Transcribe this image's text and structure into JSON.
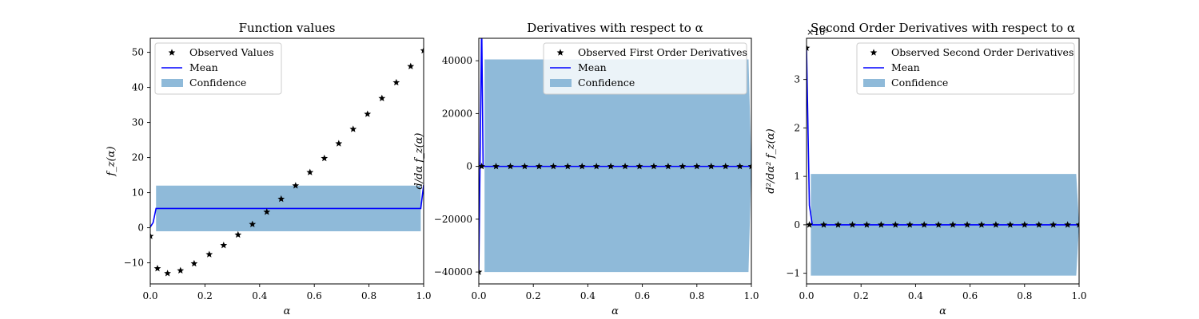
{
  "figure": {
    "background": "#ffffff",
    "colors": {
      "observed": "#000000",
      "mean": "#0000ff",
      "confidence": "#8fbad9"
    }
  },
  "chart_data": [
    {
      "type": "line",
      "title": "Function values",
      "xlabel": "α",
      "ylabel": "f_z(α)",
      "xlim": [
        0,
        1
      ],
      "ylim": [
        -16,
        54
      ],
      "xticks": [
        0,
        0.2,
        0.4,
        0.6,
        0.8,
        1
      ],
      "xtick_labels": [
        "0.0",
        "0.2",
        "0.4",
        "0.6",
        "0.8",
        "1.0"
      ],
      "yticks": [
        -10,
        0,
        10,
        20,
        30,
        40,
        50
      ],
      "ytick_labels": [
        "−10",
        "0",
        "10",
        "20",
        "30",
        "40",
        "50"
      ],
      "offset_text": "",
      "legend": {
        "location": "top-left",
        "entries": [
          "Observed Values",
          "Mean",
          "Confidence"
        ]
      },
      "observed": {
        "x": [
          0,
          0.0526,
          0.1053,
          0.1579,
          0.2105,
          0.2632,
          0.3158,
          0.3684,
          0.4211,
          0.4737,
          0.5263,
          0.5789,
          0.6316,
          0.6842,
          0.7368,
          0.7895,
          0.8421,
          0.8947,
          0.9474,
          1.0
        ],
        "y": [
          -2.4,
          -11.6,
          -13.0,
          -12.2,
          -10.2,
          -7.6,
          -5.0,
          -2.0,
          1.0,
          4.5,
          8.2,
          12.0,
          15.8,
          19.8,
          24.0,
          28.1,
          32.4,
          36.9,
          41.4,
          46.0
        ],
        "x_full": [
          0.0,
          0.0263,
          0.0632,
          0.1105,
          0.1605,
          0.2158,
          0.2684,
          0.3211,
          0.3737,
          0.4263,
          0.4789,
          0.5316,
          0.5842,
          0.6368,
          0.6895,
          0.7421,
          0.7947,
          0.8474,
          0.9,
          0.9526,
          1.0
        ],
        "y_full": [
          -2.4,
          -11.6,
          -13.0,
          -12.2,
          -10.2,
          -7.6,
          -5.0,
          -2.0,
          1.0,
          4.5,
          8.2,
          12.0,
          15.8,
          19.8,
          24.0,
          28.1,
          32.4,
          36.9,
          41.4,
          46.0,
          50.5
        ]
      },
      "mean": {
        "x": [
          0,
          0.0105,
          0.0211,
          0.9895,
          1.0
        ],
        "y": [
          0.2,
          1.5,
          5.5,
          5.5,
          12.2
        ]
      },
      "confidence": {
        "x": [
          0.0211,
          0.9895
        ],
        "lower": [
          -1.0,
          -1.0
        ],
        "upper": [
          12.0,
          12.0
        ]
      }
    },
    {
      "type": "line",
      "title": "Derivatives with respect to α",
      "xlabel": "α",
      "ylabel": "d/dα f_z(α)",
      "xlim": [
        0,
        1
      ],
      "ylim": [
        -44500,
        48500
      ],
      "xticks": [
        0,
        0.2,
        0.4,
        0.6,
        0.8,
        1
      ],
      "xtick_labels": [
        "0.0",
        "0.2",
        "0.4",
        "0.6",
        "0.8",
        "1.0"
      ],
      "yticks": [
        -40000,
        -20000,
        0,
        20000,
        40000
      ],
      "ytick_labels": [
        "−40000",
        "−20000",
        "0",
        "20000",
        "40000"
      ],
      "offset_text": "",
      "legend": {
        "location": "top-right",
        "entries": [
          "Observed First Order Derivatives",
          "Mean",
          "Confidence"
        ]
      },
      "observed": {
        "x": [
          0.0,
          0.0105,
          0.0632,
          0.1158,
          0.1684,
          0.2211,
          0.2737,
          0.3263,
          0.3789,
          0.4316,
          0.4842,
          0.5368,
          0.5895,
          0.6421,
          0.6947,
          0.7474,
          0.8,
          0.8526,
          0.9053,
          0.9579,
          1.0
        ],
        "y": [
          -40000,
          0,
          0,
          0,
          0,
          0,
          0,
          0,
          0,
          0,
          0,
          0,
          0,
          0,
          0,
          0,
          0,
          0,
          0,
          0,
          0
        ]
      },
      "mean": {
        "x": [
          0.0,
          0.0105,
          0.0158,
          0.0211,
          1.0
        ],
        "y": [
          -40000,
          54500,
          0,
          0,
          0
        ]
      },
      "confidence": {
        "x": [
          0.0211,
          0.9895,
          1.0
        ],
        "lower": [
          -40000,
          -40000,
          0
        ],
        "upper": [
          40500,
          40500,
          0
        ]
      }
    },
    {
      "type": "line",
      "title": "Second Order Derivatives with respect to α",
      "xlabel": "α",
      "ylabel": "d²/dα² f_z(α)",
      "xlim": [
        0,
        1
      ],
      "ylim": [
        -1.22,
        3.85
      ],
      "xticks": [
        0,
        0.2,
        0.4,
        0.6,
        0.8,
        1
      ],
      "xtick_labels": [
        "0.0",
        "0.2",
        "0.4",
        "0.6",
        "0.8",
        "1.0"
      ],
      "yticks": [
        -1,
        0,
        1,
        2,
        3
      ],
      "ytick_labels": [
        "−1",
        "0",
        "1",
        "2",
        "3"
      ],
      "offset_text": "×10⁹",
      "legend": {
        "location": "top-right",
        "entries": [
          "Observed Second Order Derivatives",
          "Mean",
          "Confidence"
        ]
      },
      "observed": {
        "x": [
          0.0,
          0.0105,
          0.0632,
          0.1158,
          0.1684,
          0.2211,
          0.2737,
          0.3263,
          0.3789,
          0.4316,
          0.4842,
          0.5368,
          0.5895,
          0.6421,
          0.6947,
          0.7474,
          0.8,
          0.8526,
          0.9053,
          0.9579,
          1.0
        ],
        "y": [
          3.65,
          0,
          0,
          0,
          0,
          0,
          0,
          0,
          0,
          0,
          0,
          0,
          0,
          0,
          0,
          0,
          0,
          0,
          0,
          0,
          0
        ]
      },
      "mean": {
        "x": [
          0.0,
          0.0105,
          0.0211,
          1.0
        ],
        "y": [
          3.65,
          0.4,
          0,
          0
        ]
      },
      "confidence": {
        "x": [
          0.0158,
          0.9895,
          1.0
        ],
        "lower": [
          -1.05,
          -1.05,
          0
        ],
        "upper": [
          1.05,
          1.05,
          0
        ]
      }
    }
  ]
}
